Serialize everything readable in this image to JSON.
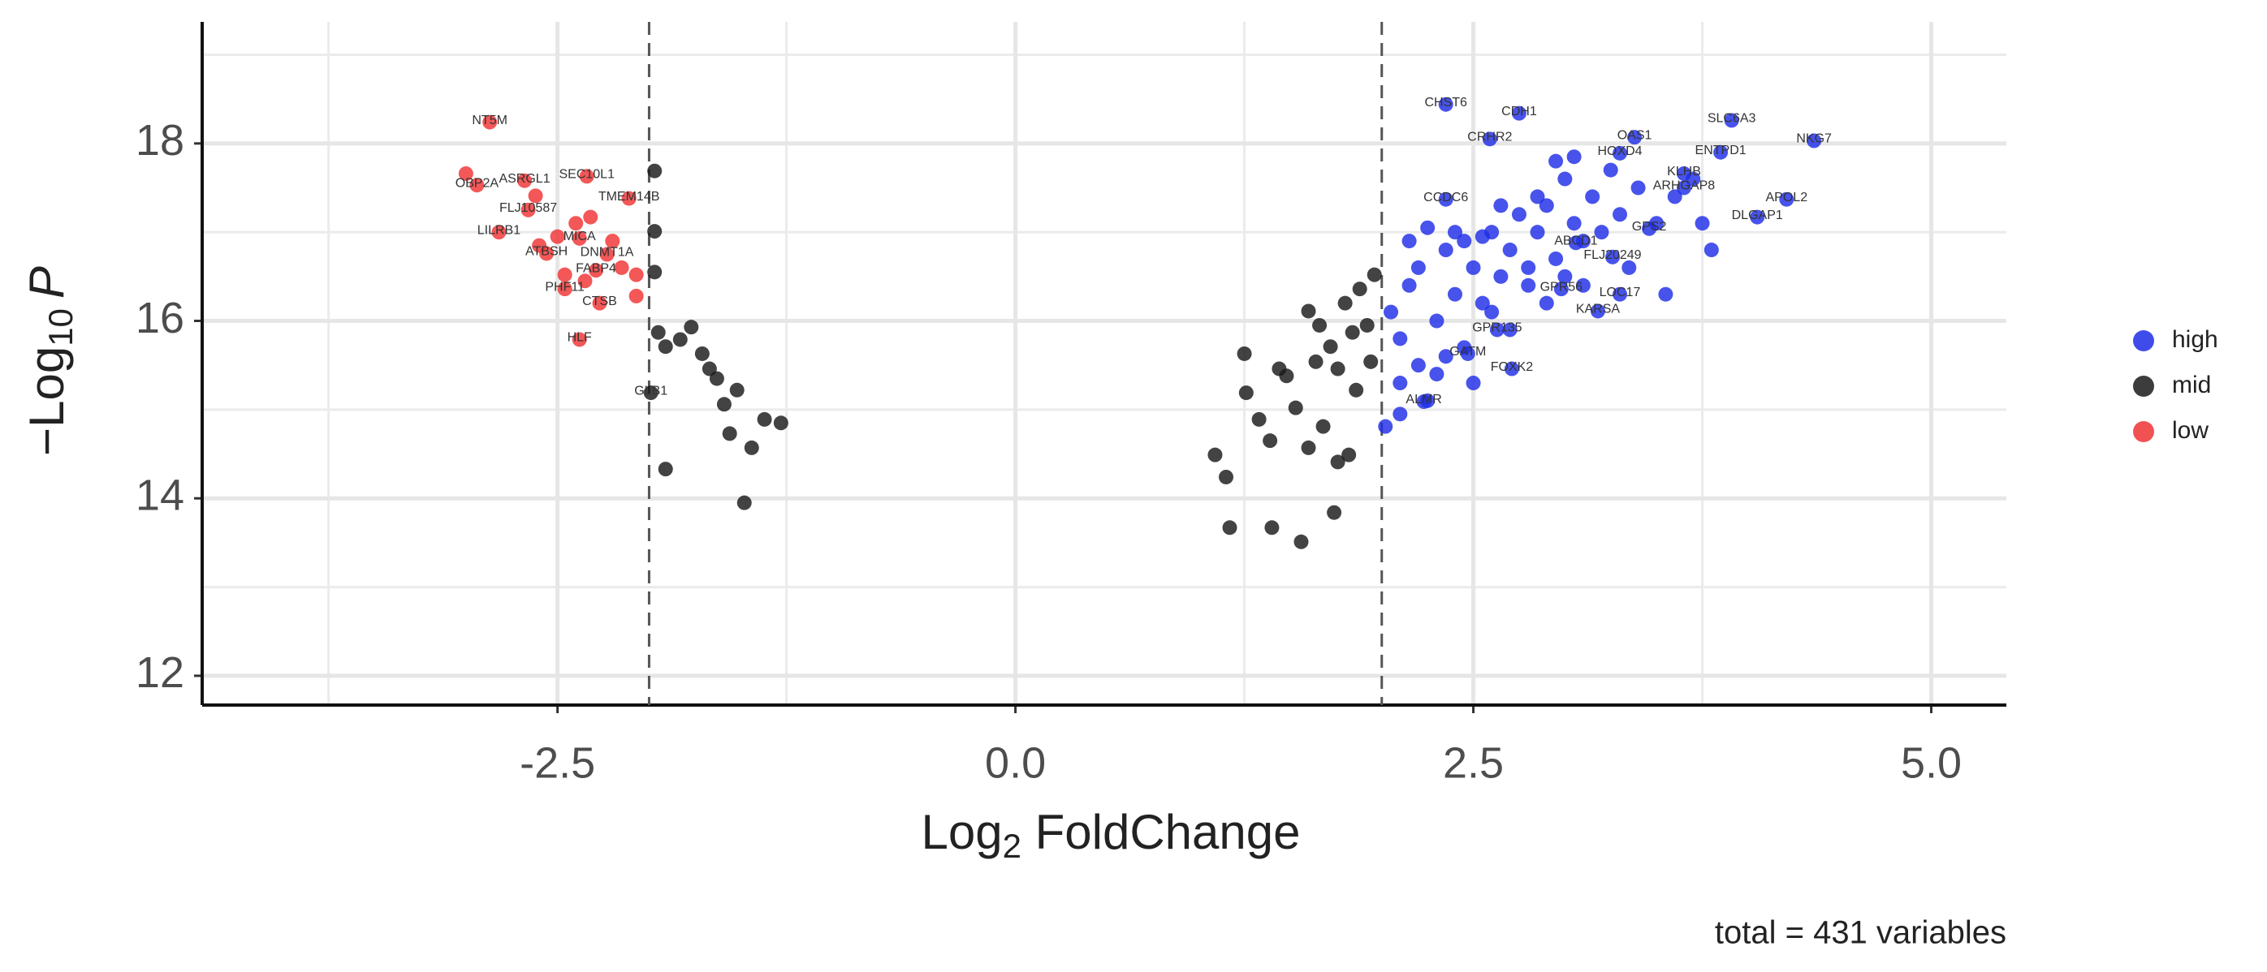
{
  "chart_data": {
    "type": "scatter",
    "xlabel": [
      "Log",
      "2",
      " FoldChange"
    ],
    "ylabel": [
      "−Log",
      "10",
      "P"
    ],
    "caption": "total = 431 variables",
    "xlim": [
      -4.44,
      5.41
    ],
    "ylim": [
      11.67,
      19.37
    ],
    "xticks": [
      -2.5,
      {
        "value": 0,
        "label": "0.0"
      },
      2.5,
      {
        "value": 5,
        "label": "5.0"
      }
    ],
    "yticks": [
      12,
      14,
      16,
      18
    ],
    "vlines": [
      -2,
      2
    ],
    "grid": true,
    "minor_grid": true,
    "legend": "right",
    "series": [
      {
        "name": "high",
        "color": "#1f2de6",
        "x": [
          2.35,
          2.75,
          2.59,
          3.91,
          4.36,
          3.38,
          3.3,
          3.85,
          3.65,
          3.65,
          4.21,
          4.05,
          2.35,
          3.46,
          3.26,
          3.06,
          2.98,
          3.18,
          2.63,
          2.71,
          2.47,
          2.23,
          2.05,
          2.1,
          2.15,
          2.2,
          2.1,
          2.25,
          2.3,
          2.35,
          2.4,
          2.45,
          2.5,
          2.55,
          2.6,
          2.65,
          2.7,
          2.75,
          2.8,
          2.85,
          2.9,
          2.95,
          3.0,
          3.05,
          3.1,
          3.15,
          3.2,
          3.25,
          3.3,
          3.35,
          3.4,
          3.5,
          3.55,
          3.6,
          3.7,
          3.75,
          3.8,
          2.2,
          2.3,
          2.45,
          2.6,
          2.7,
          2.9,
          3.0,
          2.15,
          2.25,
          2.4,
          2.55,
          2.8,
          2.35,
          2.5,
          2.1,
          3.1,
          3.3,
          2.95,
          3.05,
          2.85,
          2.65,
          2.02
        ],
        "values": [
          18.44,
          18.34,
          18.05,
          18.26,
          18.03,
          18.07,
          17.89,
          17.9,
          17.66,
          17.5,
          17.37,
          17.17,
          17.37,
          17.04,
          16.72,
          16.88,
          16.36,
          16.11,
          15.9,
          15.46,
          15.63,
          15.09,
          16.1,
          15.8,
          16.4,
          16.6,
          15.3,
          15.1,
          16.0,
          16.8,
          16.3,
          16.9,
          16.6,
          16.2,
          17.0,
          16.5,
          16.8,
          17.2,
          16.4,
          17.0,
          17.3,
          16.7,
          17.6,
          17.1,
          16.9,
          17.4,
          17.0,
          17.7,
          17.2,
          16.6,
          17.5,
          17.1,
          16.3,
          17.4,
          17.6,
          17.1,
          16.8,
          15.5,
          15.4,
          15.7,
          16.1,
          15.9,
          16.2,
          16.5,
          16.9,
          17.05,
          17.0,
          16.95,
          16.6,
          15.6,
          15.3,
          14.95,
          16.4,
          16.3,
          17.8,
          17.85,
          17.4,
          17.3,
          14.81
        ],
        "labels": [
          "CHST6",
          "CDH1",
          "CRHR2",
          "SLC6A3",
          "NKG7",
          "OAS1",
          "HOXD4",
          "ENTPD1",
          "KLHB",
          "ARHGAP8",
          "APOL2",
          "DLGAP1",
          "CCDC6",
          "GPS2",
          "FLJ20249",
          "ABCD1",
          "GPR56",
          "KARSA",
          "GPR135",
          "FOXK2",
          "GATM",
          "ALMR",
          null,
          null,
          null,
          null,
          null,
          null,
          null,
          null,
          null,
          null,
          null,
          null,
          null,
          null,
          null,
          null,
          null,
          null,
          null,
          null,
          null,
          null,
          null,
          null,
          null,
          null,
          null,
          null,
          null,
          null,
          null,
          null,
          null,
          null,
          null,
          null,
          null,
          null,
          null,
          null,
          null,
          null,
          null,
          null,
          null,
          null,
          null,
          null,
          null,
          null,
          null,
          "LOC17"
        ]
      },
      {
        "name": "mid",
        "color": "#1a1a1a",
        "x": [
          -1.97,
          -1.97,
          -1.97,
          -1.95,
          -1.91,
          -1.83,
          -1.77,
          -1.71,
          -1.67,
          -1.63,
          -1.59,
          -1.56,
          -1.52,
          -1.48,
          -1.44,
          -1.37,
          -1.28,
          -1.91,
          -1.99,
          1.09,
          1.15,
          1.17,
          1.25,
          1.26,
          1.33,
          1.39,
          1.4,
          1.44,
          1.48,
          1.53,
          1.56,
          1.6,
          1.64,
          1.68,
          1.72,
          1.74,
          1.76,
          1.8,
          1.84,
          1.86,
          1.88,
          1.92,
          1.94,
          1.96,
          1.66,
          1.6,
          1.76,
          1.82
        ],
        "values": [
          17.69,
          17.01,
          16.55,
          15.87,
          15.71,
          15.79,
          15.93,
          15.63,
          15.46,
          15.35,
          15.06,
          14.73,
          15.22,
          13.95,
          14.57,
          14.89,
          14.85,
          14.33,
          15.19,
          14.49,
          14.24,
          13.67,
          15.63,
          15.19,
          14.89,
          14.65,
          13.67,
          15.46,
          15.38,
          15.02,
          13.51,
          14.57,
          15.54,
          14.81,
          15.71,
          13.84,
          14.41,
          16.2,
          15.87,
          15.22,
          16.36,
          15.95,
          15.54,
          16.52,
          15.95,
          16.11,
          15.46,
          14.49
        ],
        "labels": [
          null,
          null,
          null,
          null,
          null,
          null,
          null,
          null,
          null,
          null,
          null,
          null,
          null,
          null,
          null,
          null,
          null,
          null,
          "GLB1",
          null,
          null,
          null,
          null,
          null,
          null,
          null,
          null,
          null,
          null,
          null,
          null,
          null,
          null,
          null,
          null,
          null,
          null,
          null,
          null,
          null,
          null,
          null,
          null,
          null,
          null,
          null,
          null,
          null
        ]
      },
      {
        "name": "low",
        "color": "#f03232",
        "x": [
          -2.87,
          -2.94,
          -2.34,
          -2.68,
          -2.11,
          -2.66,
          -2.82,
          -2.38,
          -2.56,
          -2.23,
          -2.29,
          -2.46,
          -2.27,
          -2.38,
          -3.0,
          -2.62,
          -2.32,
          -2.07,
          -2.07,
          -2.46,
          -2.4,
          -2.5,
          -2.2,
          -2.15,
          -2.6,
          -2.35
        ],
        "values": [
          18.24,
          17.53,
          17.63,
          17.58,
          17.38,
          17.25,
          17.0,
          16.93,
          16.76,
          16.75,
          16.57,
          16.36,
          16.2,
          15.79,
          17.66,
          17.41,
          17.17,
          16.52,
          16.28,
          16.52,
          17.1,
          16.95,
          16.9,
          16.6,
          16.85,
          16.45
        ],
        "labels": [
          "NT5M",
          "OBP2A",
          "SEC10L1",
          "ASRGL1",
          "TMEM14B",
          "FLJ10587",
          "LILRB1",
          "MICA",
          "ATBSH",
          "DNMT1A",
          "FABP4",
          "PHF11",
          "CTSB",
          "HLF",
          null,
          null,
          null,
          null,
          null,
          null,
          null,
          null,
          null,
          null,
          null,
          null
        ]
      }
    ]
  }
}
